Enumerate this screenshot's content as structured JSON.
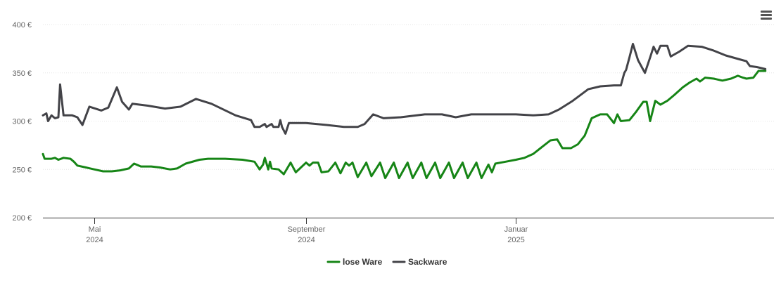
{
  "menu": {
    "icon": "hamburger-menu-icon"
  },
  "chart_data": {
    "type": "line",
    "title": "",
    "xlabel": "",
    "ylabel": "",
    "ylim": [
      200,
      400
    ],
    "xlim": [
      "2024-04-01",
      "2025-05-31"
    ],
    "grid": true,
    "legend_position": "bottom-center",
    "y_ticks": [
      {
        "value": 200,
        "label": "200 €"
      },
      {
        "value": 250,
        "label": "250 €"
      },
      {
        "value": 300,
        "label": "300 €"
      },
      {
        "value": 350,
        "label": "350 €"
      },
      {
        "value": 400,
        "label": "400 €"
      }
    ],
    "x_ticks": [
      {
        "date": "2024-05-01",
        "label": "Mai",
        "sublabel": "2024"
      },
      {
        "date": "2024-09-01",
        "label": "September",
        "sublabel": "2024"
      },
      {
        "date": "2025-01-01",
        "label": "Januar",
        "sublabel": "2025"
      }
    ],
    "series": [
      {
        "name": "lose Ware",
        "color": "#168516",
        "points": [
          [
            "2024-04-01",
            266
          ],
          [
            "2024-04-02",
            261
          ],
          [
            "2024-04-06",
            261
          ],
          [
            "2024-04-08",
            262
          ],
          [
            "2024-04-10",
            260
          ],
          [
            "2024-04-13",
            262
          ],
          [
            "2024-04-17",
            261
          ],
          [
            "2024-04-19",
            258
          ],
          [
            "2024-04-21",
            254
          ],
          [
            "2024-04-26",
            252
          ],
          [
            "2024-05-01",
            250
          ],
          [
            "2024-05-06",
            248
          ],
          [
            "2024-05-11",
            248
          ],
          [
            "2024-05-16",
            249
          ],
          [
            "2024-05-21",
            251
          ],
          [
            "2024-05-24",
            256
          ],
          [
            "2024-05-28",
            253
          ],
          [
            "2024-06-03",
            253
          ],
          [
            "2024-06-08",
            252
          ],
          [
            "2024-06-14",
            250
          ],
          [
            "2024-06-18",
            251
          ],
          [
            "2024-06-23",
            256
          ],
          [
            "2024-07-01",
            260
          ],
          [
            "2024-07-06",
            261
          ],
          [
            "2024-07-16",
            261
          ],
          [
            "2024-07-26",
            260
          ],
          [
            "2024-08-02",
            258
          ],
          [
            "2024-08-05",
            250
          ],
          [
            "2024-08-07",
            255
          ],
          [
            "2024-08-08",
            262
          ],
          [
            "2024-08-10",
            250
          ],
          [
            "2024-08-11",
            258
          ],
          [
            "2024-08-12",
            251
          ],
          [
            "2024-08-16",
            250
          ],
          [
            "2024-08-19",
            245
          ],
          [
            "2024-08-23",
            257
          ],
          [
            "2024-08-26",
            247
          ],
          [
            "2024-08-29",
            252
          ],
          [
            "2024-09-01",
            257
          ],
          [
            "2024-09-03",
            254
          ],
          [
            "2024-09-05",
            257
          ],
          [
            "2024-09-08",
            257
          ],
          [
            "2024-09-10",
            247
          ],
          [
            "2024-09-14",
            248
          ],
          [
            "2024-09-18",
            257
          ],
          [
            "2024-09-21",
            246
          ],
          [
            "2024-09-24",
            257
          ],
          [
            "2024-09-26",
            254
          ],
          [
            "2024-09-28",
            257
          ],
          [
            "2024-10-01",
            242
          ],
          [
            "2024-10-06",
            257
          ],
          [
            "2024-10-09",
            243
          ],
          [
            "2024-10-14",
            257
          ],
          [
            "2024-10-17",
            241
          ],
          [
            "2024-10-22",
            257
          ],
          [
            "2024-10-25",
            241
          ],
          [
            "2024-10-30",
            257
          ],
          [
            "2024-11-02",
            241
          ],
          [
            "2024-11-07",
            257
          ],
          [
            "2024-11-10",
            241
          ],
          [
            "2024-11-15",
            257
          ],
          [
            "2024-11-18",
            241
          ],
          [
            "2024-11-23",
            257
          ],
          [
            "2024-11-26",
            241
          ],
          [
            "2024-12-01",
            257
          ],
          [
            "2024-12-04",
            241
          ],
          [
            "2024-12-09",
            257
          ],
          [
            "2024-12-12",
            241
          ],
          [
            "2024-12-14",
            248
          ],
          [
            "2024-12-16",
            255
          ],
          [
            "2024-12-18",
            247
          ],
          [
            "2024-12-20",
            256
          ],
          [
            "2024-12-26",
            258
          ],
          [
            "2025-01-01",
            260
          ],
          [
            "2025-01-06",
            262
          ],
          [
            "2025-01-11",
            266
          ],
          [
            "2025-01-16",
            273
          ],
          [
            "2025-01-21",
            280
          ],
          [
            "2025-01-25",
            281
          ],
          [
            "2025-01-28",
            272
          ],
          [
            "2025-02-02",
            272
          ],
          [
            "2025-02-06",
            276
          ],
          [
            "2025-02-10",
            285
          ],
          [
            "2025-02-14",
            303
          ],
          [
            "2025-02-19",
            307
          ],
          [
            "2025-02-23",
            307
          ],
          [
            "2025-02-27",
            298
          ],
          [
            "2025-03-01",
            307
          ],
          [
            "2025-03-03",
            300
          ],
          [
            "2025-03-08",
            301
          ],
          [
            "2025-03-12",
            310
          ],
          [
            "2025-03-16",
            320
          ],
          [
            "2025-03-18",
            320
          ],
          [
            "2025-03-20",
            300
          ],
          [
            "2025-03-23",
            321
          ],
          [
            "2025-03-26",
            317
          ],
          [
            "2025-03-30",
            321
          ],
          [
            "2025-04-03",
            327
          ],
          [
            "2025-04-08",
            335
          ],
          [
            "2025-04-12",
            340
          ],
          [
            "2025-04-16",
            344
          ],
          [
            "2025-04-18",
            341
          ],
          [
            "2025-04-21",
            345
          ],
          [
            "2025-04-26",
            344
          ],
          [
            "2025-05-01",
            342
          ],
          [
            "2025-05-06",
            344
          ],
          [
            "2025-05-10",
            347
          ],
          [
            "2025-05-13",
            345
          ],
          [
            "2025-05-15",
            344
          ],
          [
            "2025-05-19",
            345
          ],
          [
            "2025-05-22",
            352
          ],
          [
            "2025-05-26",
            352
          ]
        ]
      },
      {
        "name": "Sackware",
        "color": "#434348",
        "points": [
          [
            "2024-04-01",
            306
          ],
          [
            "2024-04-03",
            308
          ],
          [
            "2024-04-04",
            300
          ],
          [
            "2024-04-06",
            306
          ],
          [
            "2024-04-08",
            303
          ],
          [
            "2024-04-10",
            304
          ],
          [
            "2024-04-11",
            338
          ],
          [
            "2024-04-13",
            306
          ],
          [
            "2024-04-18",
            306
          ],
          [
            "2024-04-21",
            304
          ],
          [
            "2024-04-24",
            296
          ],
          [
            "2024-04-28",
            315
          ],
          [
            "2024-05-05",
            311
          ],
          [
            "2024-05-09",
            314
          ],
          [
            "2024-05-14",
            335
          ],
          [
            "2024-05-17",
            320
          ],
          [
            "2024-05-21",
            312
          ],
          [
            "2024-05-23",
            318
          ],
          [
            "2024-06-01",
            316
          ],
          [
            "2024-06-11",
            313
          ],
          [
            "2024-06-20",
            315
          ],
          [
            "2024-06-29",
            323
          ],
          [
            "2024-07-08",
            318
          ],
          [
            "2024-07-22",
            306
          ],
          [
            "2024-07-31",
            301
          ],
          [
            "2024-08-02",
            294
          ],
          [
            "2024-08-05",
            294
          ],
          [
            "2024-08-08",
            297
          ],
          [
            "2024-08-09",
            294
          ],
          [
            "2024-08-12",
            297
          ],
          [
            "2024-08-13",
            294
          ],
          [
            "2024-08-16",
            294
          ],
          [
            "2024-08-17",
            301
          ],
          [
            "2024-08-18",
            294
          ],
          [
            "2024-08-20",
            287
          ],
          [
            "2024-08-22",
            298
          ],
          [
            "2024-09-01",
            298
          ],
          [
            "2024-09-13",
            296
          ],
          [
            "2024-09-23",
            294
          ],
          [
            "2024-10-01",
            294
          ],
          [
            "2024-10-05",
            297
          ],
          [
            "2024-10-10",
            307
          ],
          [
            "2024-10-16",
            303
          ],
          [
            "2024-10-26",
            304
          ],
          [
            "2024-11-09",
            307
          ],
          [
            "2024-11-19",
            307
          ],
          [
            "2024-11-27",
            304
          ],
          [
            "2024-12-06",
            307
          ],
          [
            "2024-12-21",
            307
          ],
          [
            "2025-01-01",
            307
          ],
          [
            "2025-01-11",
            306
          ],
          [
            "2025-01-20",
            307
          ],
          [
            "2025-01-26",
            312
          ],
          [
            "2025-02-03",
            321
          ],
          [
            "2025-02-12",
            333
          ],
          [
            "2025-02-19",
            336
          ],
          [
            "2025-02-27",
            337
          ],
          [
            "2025-03-03",
            337
          ],
          [
            "2025-03-05",
            350
          ],
          [
            "2025-03-06",
            353
          ],
          [
            "2025-03-08",
            366
          ],
          [
            "2025-03-10",
            380
          ],
          [
            "2025-03-13",
            363
          ],
          [
            "2025-03-17",
            350
          ],
          [
            "2025-03-20",
            366
          ],
          [
            "2025-03-22",
            377
          ],
          [
            "2025-03-24",
            370
          ],
          [
            "2025-03-26",
            378
          ],
          [
            "2025-03-30",
            378
          ],
          [
            "2025-04-01",
            367
          ],
          [
            "2025-04-06",
            372
          ],
          [
            "2025-04-11",
            378
          ],
          [
            "2025-04-19",
            377
          ],
          [
            "2025-04-26",
            373
          ],
          [
            "2025-05-03",
            368
          ],
          [
            "2025-05-11",
            364
          ],
          [
            "2025-05-15",
            362
          ],
          [
            "2025-05-17",
            357
          ],
          [
            "2025-05-21",
            356
          ],
          [
            "2025-05-26",
            354
          ]
        ]
      }
    ]
  }
}
